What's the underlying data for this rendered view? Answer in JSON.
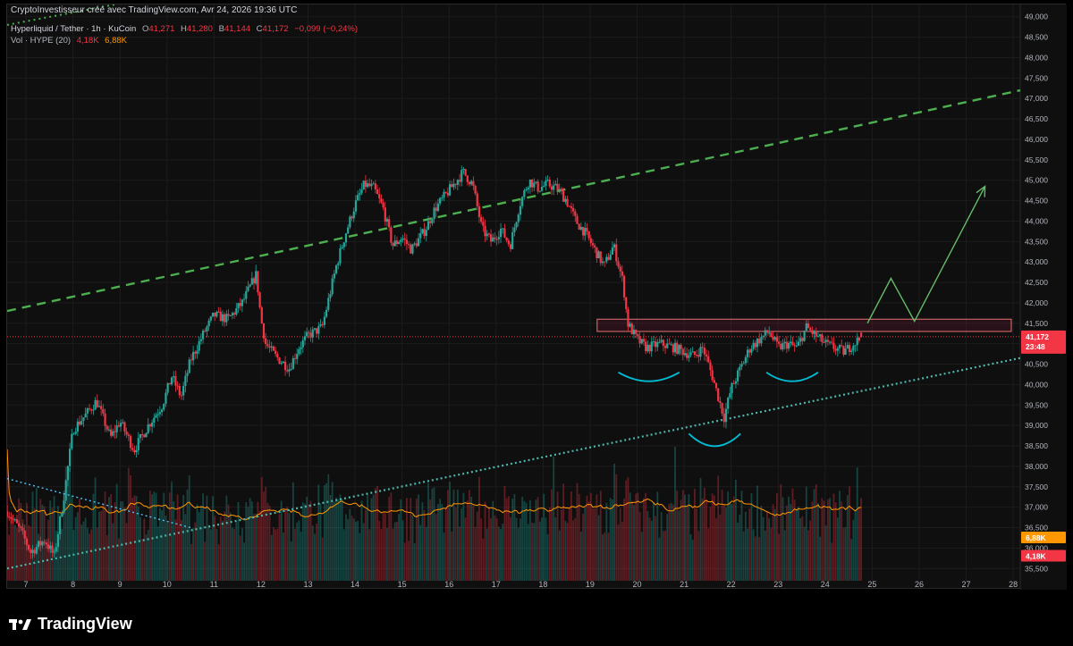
{
  "header": {
    "snapshot_text": "CryptoInvestisseur créé avec TradingView.com, Avr 24, 2026 19:36 UTC",
    "symbol": "Hyperliquid / Tether · 1h · KuCoin",
    "ohlc": {
      "o_label": "O",
      "o": "41,271",
      "h_label": "H",
      "h": "41,280",
      "b_label": "B",
      "b": "41,144",
      "c_label": "C",
      "c": "41,172",
      "change": "−0,099 (−0,24%)"
    },
    "volume_label": "Vol · HYPE (20)",
    "volume_values": [
      "4,18K",
      "6,88K"
    ]
  },
  "footer": {
    "brand": "TradingView",
    "logo_icon": "tradingview-logo-icon"
  },
  "colors": {
    "background": "#0f0f0f",
    "up": "#26a69a",
    "down": "#f23645",
    "trend_green": "#4caf50",
    "support_teal": "#26c6da",
    "volume_ma": "#ff9800",
    "zone": "#e91e63",
    "projection": "#66bb6a",
    "smile": "#00bcd4"
  },
  "price_badges": {
    "last": "41,172",
    "countdown": "23:48",
    "vol_ma": "6,88K",
    "vol": "4,18K"
  },
  "chart_data": {
    "type": "candlestick",
    "symbol": "Hyperliquid / Tether",
    "interval": "1h",
    "exchange": "KuCoin",
    "y_ticks": [
      35500,
      36000,
      36500,
      37000,
      37500,
      38000,
      38500,
      39000,
      39500,
      40000,
      40500,
      41000,
      41500,
      42000,
      42500,
      43000,
      43500,
      44000,
      44500,
      45000,
      45500,
      46000,
      46500,
      47000,
      47500,
      48000,
      48500,
      49000
    ],
    "y_tick_labels": [
      "35,500",
      "36,000",
      "36,500",
      "37,000",
      "37,500",
      "38,000",
      "38,500",
      "39,000",
      "39,500",
      "40,000",
      "40,500",
      "41,000",
      "41,500",
      "42,000",
      "42,500",
      "43,000",
      "43,500",
      "44,000",
      "44,500",
      "45,000",
      "45,500",
      "46,000",
      "46,500",
      "47,000",
      "47,500",
      "48,000",
      "48,500",
      "49,000"
    ],
    "ylim": [
      35200,
      49300
    ],
    "x_labels": [
      "7",
      "8",
      "9",
      "10",
      "11",
      "12",
      "13",
      "14",
      "15",
      "16",
      "17",
      "18",
      "19",
      "20",
      "21",
      "22",
      "23",
      "24",
      "25",
      "26",
      "27",
      "28"
    ],
    "x_label_days": [
      7,
      8,
      9,
      10,
      11,
      12,
      13,
      14,
      15,
      16,
      17,
      18,
      19,
      20,
      21,
      22,
      23,
      24,
      25,
      26,
      27,
      28
    ],
    "xlim": [
      6.6,
      28.15
    ],
    "approx_close_path": [
      {
        "day": 6.6,
        "close": 36.9
      },
      {
        "day": 6.9,
        "close": 36.4
      },
      {
        "day": 7.1,
        "close": 35.9
      },
      {
        "day": 7.4,
        "close": 36.2
      },
      {
        "day": 7.6,
        "close": 35.8
      },
      {
        "day": 7.8,
        "close": 37.2
      },
      {
        "day": 8.0,
        "close": 38.9
      },
      {
        "day": 8.3,
        "close": 39.3
      },
      {
        "day": 8.5,
        "close": 39.6
      },
      {
        "day": 8.8,
        "close": 38.7
      },
      {
        "day": 9.0,
        "close": 39.1
      },
      {
        "day": 9.3,
        "close": 38.4
      },
      {
        "day": 9.6,
        "close": 39.0
      },
      {
        "day": 9.9,
        "close": 39.5
      },
      {
        "day": 10.1,
        "close": 40.2
      },
      {
        "day": 10.3,
        "close": 39.7
      },
      {
        "day": 10.5,
        "close": 40.6
      },
      {
        "day": 10.8,
        "close": 41.3
      },
      {
        "day": 11.0,
        "close": 41.7
      },
      {
        "day": 11.3,
        "close": 41.6
      },
      {
        "day": 11.6,
        "close": 42.0
      },
      {
        "day": 11.9,
        "close": 42.7
      },
      {
        "day": 12.0,
        "close": 41.6
      },
      {
        "day": 12.1,
        "close": 41.0
      },
      {
        "day": 12.3,
        "close": 40.7
      },
      {
        "day": 12.6,
        "close": 40.4
      },
      {
        "day": 12.8,
        "close": 40.9
      },
      {
        "day": 13.0,
        "close": 41.2
      },
      {
        "day": 13.3,
        "close": 41.4
      },
      {
        "day": 13.6,
        "close": 42.9
      },
      {
        "day": 13.8,
        "close": 43.7
      },
      {
        "day": 14.0,
        "close": 44.4
      },
      {
        "day": 14.2,
        "close": 44.9
      },
      {
        "day": 14.4,
        "close": 44.8
      },
      {
        "day": 14.6,
        "close": 44.3
      },
      {
        "day": 14.8,
        "close": 43.4
      },
      {
        "day": 15.0,
        "close": 43.6
      },
      {
        "day": 15.2,
        "close": 43.3
      },
      {
        "day": 15.5,
        "close": 43.8
      },
      {
        "day": 15.7,
        "close": 44.3
      },
      {
        "day": 15.9,
        "close": 44.6
      },
      {
        "day": 16.1,
        "close": 44.9
      },
      {
        "day": 16.3,
        "close": 45.2
      },
      {
        "day": 16.5,
        "close": 44.9
      },
      {
        "day": 16.7,
        "close": 43.8
      },
      {
        "day": 16.9,
        "close": 43.5
      },
      {
        "day": 17.1,
        "close": 43.8
      },
      {
        "day": 17.3,
        "close": 43.4
      },
      {
        "day": 17.5,
        "close": 44.4
      },
      {
        "day": 17.7,
        "close": 45.0
      },
      {
        "day": 17.9,
        "close": 44.8
      },
      {
        "day": 18.1,
        "close": 44.9
      },
      {
        "day": 18.3,
        "close": 44.8
      },
      {
        "day": 18.5,
        "close": 44.5
      },
      {
        "day": 18.7,
        "close": 44.0
      },
      {
        "day": 18.9,
        "close": 43.7
      },
      {
        "day": 19.1,
        "close": 43.3
      },
      {
        "day": 19.3,
        "close": 42.9
      },
      {
        "day": 19.5,
        "close": 43.4
      },
      {
        "day": 19.7,
        "close": 42.5
      },
      {
        "day": 19.8,
        "close": 41.5
      },
      {
        "day": 20.0,
        "close": 41.1
      },
      {
        "day": 20.2,
        "close": 40.9
      },
      {
        "day": 20.5,
        "close": 41.0
      },
      {
        "day": 20.8,
        "close": 40.9
      },
      {
        "day": 21.0,
        "close": 40.8
      },
      {
        "day": 21.2,
        "close": 40.7
      },
      {
        "day": 21.4,
        "close": 40.9
      },
      {
        "day": 21.6,
        "close": 40.2
      },
      {
        "day": 21.75,
        "close": 39.6
      },
      {
        "day": 21.85,
        "close": 39.2
      },
      {
        "day": 22.0,
        "close": 39.9
      },
      {
        "day": 22.2,
        "close": 40.4
      },
      {
        "day": 22.4,
        "close": 40.9
      },
      {
        "day": 22.6,
        "close": 41.1
      },
      {
        "day": 22.8,
        "close": 41.3
      },
      {
        "day": 23.0,
        "close": 40.9
      },
      {
        "day": 23.2,
        "close": 41.0
      },
      {
        "day": 23.4,
        "close": 40.9
      },
      {
        "day": 23.6,
        "close": 41.4
      },
      {
        "day": 23.8,
        "close": 41.2
      },
      {
        "day": 24.0,
        "close": 41.0
      },
      {
        "day": 24.2,
        "close": 40.9
      },
      {
        "day": 24.4,
        "close": 40.8
      },
      {
        "day": 24.6,
        "close": 41.0
      },
      {
        "day": 24.8,
        "close": 41.172
      }
    ],
    "annotations": {
      "upper_channel": [
        {
          "day": 6.6,
          "price": 41800
        },
        {
          "day": 28.15,
          "price": 47200
        }
      ],
      "support_line": [
        {
          "day": 6.6,
          "price": 35500
        },
        {
          "day": 28.15,
          "price": 40650
        }
      ],
      "upper_dotted_line": [
        {
          "day": 6.6,
          "price": 48800
        },
        {
          "day": 8.9,
          "price": 49300
        }
      ],
      "descending_dotted_line": [
        {
          "day": 6.6,
          "price": 37700
        },
        {
          "day": 10.5,
          "price": 36500
        }
      ],
      "resistance_zone": {
        "from_day": 19.15,
        "to_day": 28.15,
        "low": 41300,
        "high": 41600
      },
      "last_price_line": 41172,
      "projection_path": [
        {
          "day": 24.9,
          "price": 41500
        },
        {
          "day": 25.4,
          "price": 42600
        },
        {
          "day": 25.9,
          "price": 41550
        },
        {
          "day": 27.4,
          "price": 44850
        }
      ],
      "patterns": [
        "left shoulder",
        "head",
        "right shoulder"
      ]
    },
    "volume": {
      "last": "4,18K",
      "ma20": "6,88K"
    }
  }
}
